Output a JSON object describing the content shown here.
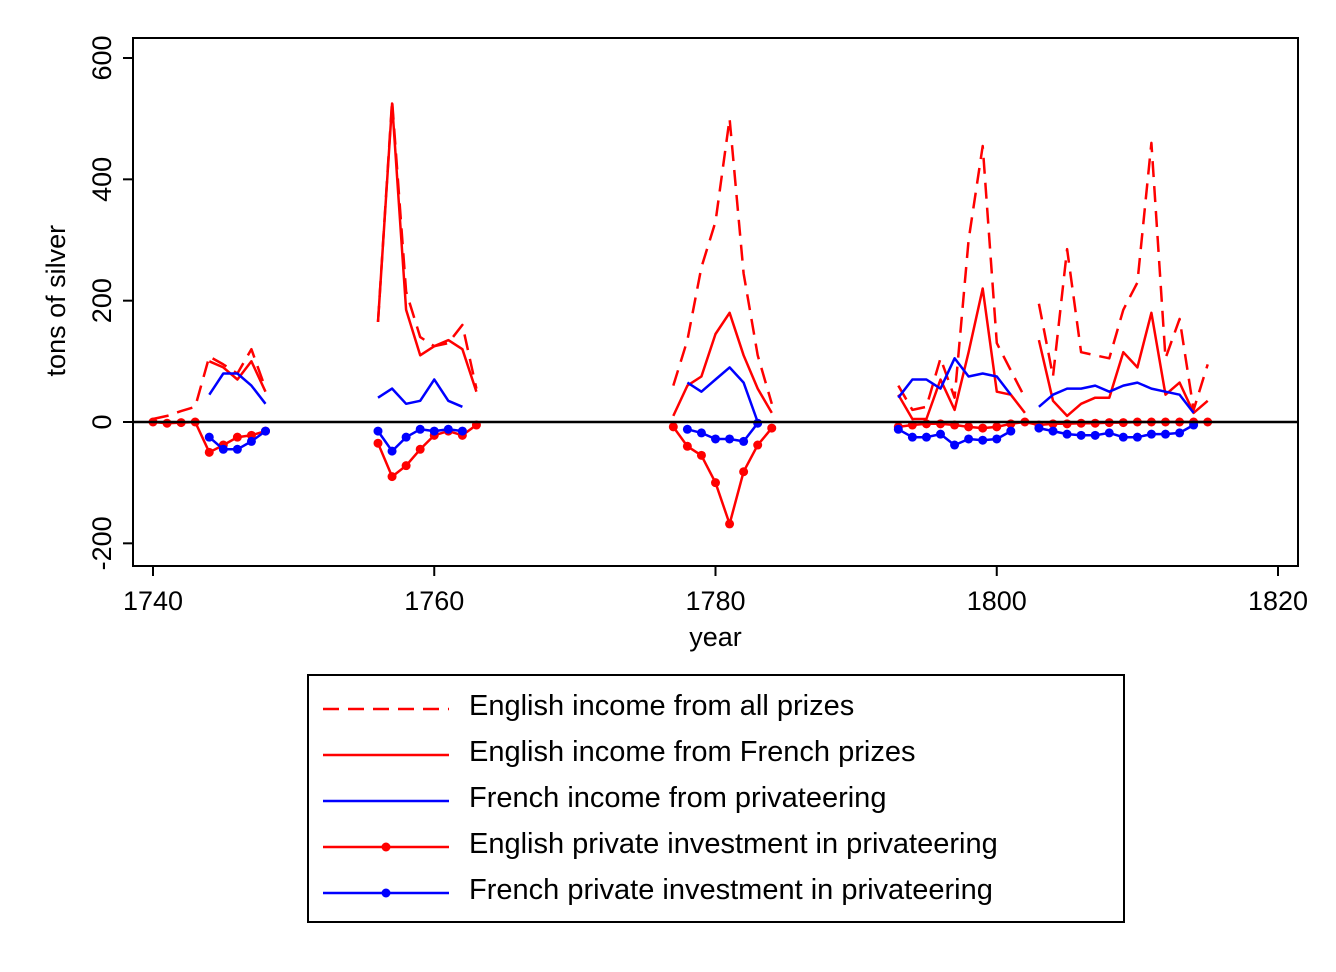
{
  "chart_data": {
    "type": "line",
    "title": "",
    "xlabel": "year",
    "ylabel": "tons of silver",
    "xlim": [
      1739,
      1821
    ],
    "ylim": [
      -250,
      630
    ],
    "xticks": [
      1740,
      1760,
      1780,
      1800,
      1820
    ],
    "yticks": [
      -200,
      0,
      200,
      400,
      600
    ],
    "xtick_labels": [
      "1740",
      "1760",
      "1780",
      "1800",
      "1820"
    ],
    "ytick_labels": [
      "-200",
      "0",
      "200",
      "400",
      "600"
    ],
    "zero_line": true,
    "grid": false,
    "legend_position": "bottom",
    "series": [
      {
        "name": "English income from all prizes",
        "color": "#ff0000",
        "style": "dashed",
        "markers": false,
        "segments": [
          {
            "x": [
              1740,
              1741,
              1742,
              1743,
              1744,
              1745,
              1746,
              1747,
              1748
            ],
            "y": [
              5,
              10,
              18,
              25,
              108,
              95,
              80,
              120,
              55
            ]
          },
          {
            "x": [
              1756,
              1757,
              1758,
              1759,
              1760,
              1761,
              1762,
              1763
            ],
            "y": [
              165,
              530,
              215,
              140,
              125,
              130,
              160,
              55
            ]
          },
          {
            "x": [
              1777,
              1778,
              1779,
              1780,
              1781,
              1782,
              1783,
              1784
            ],
            "y": [
              60,
              135,
              255,
              330,
              500,
              245,
              110,
              30
            ]
          },
          {
            "x": [
              1793,
              1794,
              1795,
              1796,
              1797,
              1798,
              1799,
              1800,
              1801,
              1802
            ],
            "y": [
              60,
              20,
              25,
              105,
              40,
              300,
              455,
              130,
              85,
              40
            ]
          },
          {
            "x": [
              1803,
              1804,
              1805,
              1806,
              1807,
              1808,
              1809,
              1810,
              1811,
              1812,
              1813,
              1814,
              1815
            ],
            "y": [
              195,
              75,
              285,
              115,
              110,
              105,
              185,
              230,
              460,
              105,
              170,
              20,
              95
            ]
          }
        ]
      },
      {
        "name": "English income from French prizes",
        "color": "#ff0000",
        "style": "solid",
        "markers": false,
        "segments": [
          {
            "x": [
              1744,
              1745,
              1746,
              1747,
              1748
            ],
            "y": [
              100,
              90,
              70,
              100,
              50
            ]
          },
          {
            "x": [
              1756,
              1757,
              1758,
              1759,
              1760,
              1761,
              1762,
              1763
            ],
            "y": [
              165,
              525,
              185,
              110,
              125,
              135,
              120,
              50
            ]
          },
          {
            "x": [
              1777,
              1778,
              1779,
              1780,
              1781,
              1782,
              1783,
              1784
            ],
            "y": [
              10,
              60,
              75,
              145,
              180,
              110,
              55,
              15
            ]
          },
          {
            "x": [
              1793,
              1794,
              1795,
              1796,
              1797,
              1798,
              1799,
              1800,
              1801,
              1802
            ],
            "y": [
              45,
              5,
              5,
              70,
              20,
              115,
              220,
              50,
              45,
              15
            ]
          },
          {
            "x": [
              1803,
              1804,
              1805,
              1806,
              1807,
              1808,
              1809,
              1810,
              1811,
              1812,
              1813,
              1814,
              1815
            ],
            "y": [
              135,
              35,
              10,
              30,
              40,
              40,
              115,
              90,
              180,
              45,
              65,
              15,
              35
            ]
          }
        ]
      },
      {
        "name": "French income from privateering",
        "color": "#0000ff",
        "style": "solid",
        "markers": false,
        "segments": [
          {
            "x": [
              1744,
              1745,
              1746,
              1747,
              1748
            ],
            "y": [
              45,
              80,
              80,
              60,
              30
            ]
          },
          {
            "x": [
              1756,
              1757,
              1758,
              1759,
              1760,
              1761,
              1762
            ],
            "y": [
              40,
              55,
              30,
              35,
              70,
              35,
              25
            ]
          },
          {
            "x": [
              1778,
              1779,
              1780,
              1781,
              1782,
              1783
            ],
            "y": [
              65,
              50,
              70,
              90,
              65,
              0
            ]
          },
          {
            "x": [
              1793,
              1794,
              1795,
              1796,
              1797,
              1798,
              1799,
              1800,
              1801
            ],
            "y": [
              40,
              70,
              70,
              55,
              105,
              75,
              80,
              75,
              45
            ]
          },
          {
            "x": [
              1803,
              1804,
              1805,
              1806,
              1807,
              1808,
              1809,
              1810,
              1811,
              1812,
              1813,
              1814
            ],
            "y": [
              25,
              45,
              55,
              55,
              60,
              50,
              60,
              65,
              55,
              50,
              45,
              15
            ]
          }
        ]
      },
      {
        "name": "English private investment in privateering",
        "color": "#ff0000",
        "style": "solid",
        "markers": true,
        "segments": [
          {
            "x": [
              1740,
              1741,
              1742,
              1743,
              1744,
              1745,
              1746,
              1747,
              1748
            ],
            "y": [
              0,
              -2,
              -1,
              0,
              -50,
              -38,
              -25,
              -22,
              -15
            ]
          },
          {
            "x": [
              1756,
              1757,
              1758,
              1759,
              1760,
              1761,
              1762,
              1763
            ],
            "y": [
              -35,
              -90,
              -72,
              -45,
              -22,
              -15,
              -22,
              -5
            ]
          },
          {
            "x": [
              1777,
              1778,
              1779,
              1780,
              1781,
              1782,
              1783,
              1784
            ],
            "y": [
              -8,
              -40,
              -55,
              -100,
              -168,
              -82,
              -38,
              -10
            ]
          },
          {
            "x": [
              1793,
              1794,
              1795,
              1796,
              1797,
              1798,
              1799,
              1800,
              1801,
              1802,
              1803,
              1804,
              1805,
              1806,
              1807,
              1808,
              1809,
              1810,
              1811,
              1812,
              1813,
              1814,
              1815
            ],
            "y": [
              -8,
              -5,
              -3,
              -3,
              -5,
              -8,
              -10,
              -8,
              -3,
              0,
              -5,
              -3,
              -3,
              -2,
              -2,
              -1,
              -1,
              0,
              0,
              0,
              0,
              0,
              0
            ]
          }
        ]
      },
      {
        "name": "French private investment in privateering",
        "color": "#0000ff",
        "style": "solid",
        "markers": true,
        "segments": [
          {
            "x": [
              1744,
              1745,
              1746,
              1747,
              1748
            ],
            "y": [
              -25,
              -45,
              -45,
              -32,
              -15
            ]
          },
          {
            "x": [
              1756,
              1757,
              1758,
              1759,
              1760,
              1761,
              1762
            ],
            "y": [
              -15,
              -48,
              -25,
              -12,
              -15,
              -12,
              -15
            ]
          },
          {
            "x": [
              1778,
              1779,
              1780,
              1781,
              1782,
              1783
            ],
            "y": [
              -12,
              -18,
              -28,
              -28,
              -32,
              -2
            ]
          },
          {
            "x": [
              1793,
              1794,
              1795,
              1796,
              1797,
              1798,
              1799,
              1800,
              1801
            ],
            "y": [
              -12,
              -25,
              -25,
              -20,
              -38,
              -28,
              -30,
              -28,
              -15
            ]
          },
          {
            "x": [
              1803,
              1804,
              1805,
              1806,
              1807,
              1808,
              1809,
              1810,
              1811,
              1812,
              1813,
              1814
            ],
            "y": [
              -10,
              -15,
              -20,
              -22,
              -22,
              -18,
              -25,
              -25,
              -20,
              -20,
              -18,
              -5
            ]
          }
        ]
      }
    ]
  }
}
